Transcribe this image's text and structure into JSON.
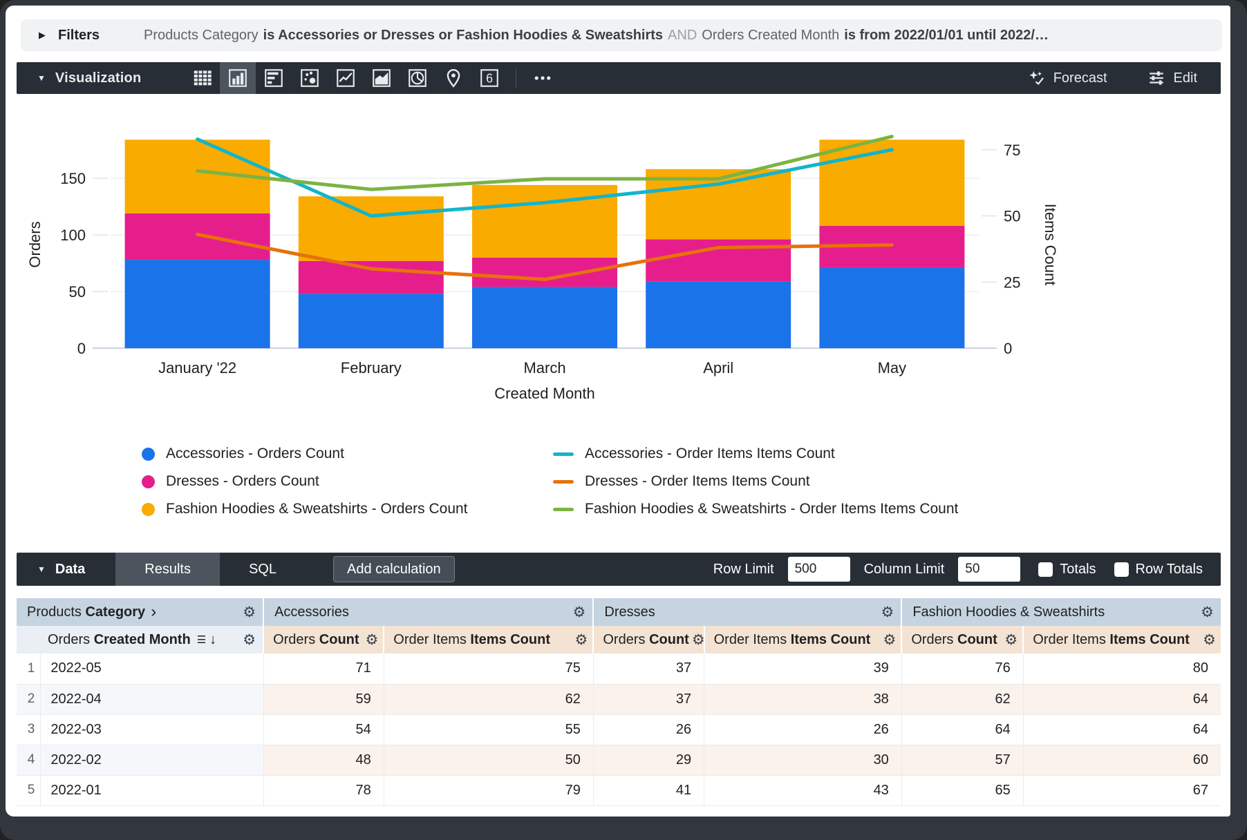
{
  "filters_bar": {
    "label": "Filters",
    "segments": [
      {
        "text": "Products Category",
        "style": "normal"
      },
      {
        "text": "is Accessories or Dresses or Fashion Hoodies & Sweatshirts",
        "style": "bold"
      },
      {
        "text": "AND",
        "style": "muted"
      },
      {
        "text": "Orders Created Month",
        "style": "normal"
      },
      {
        "text": "is from 2022/01/01 until 2022/…",
        "style": "bold"
      }
    ]
  },
  "viz_toolbar": {
    "title": "Visualization",
    "icons": [
      {
        "name": "table-icon",
        "selected": false
      },
      {
        "name": "column-chart-icon",
        "selected": true
      },
      {
        "name": "bar-chart-icon",
        "selected": false
      },
      {
        "name": "scatter-chart-icon",
        "selected": false
      },
      {
        "name": "line-chart-icon",
        "selected": false
      },
      {
        "name": "area-chart-icon",
        "selected": false
      },
      {
        "name": "pie-chart-icon",
        "selected": false
      },
      {
        "name": "map-pin-icon",
        "selected": false
      },
      {
        "name": "single-value-icon",
        "selected": false,
        "glyph": "6"
      },
      {
        "name": "more-icon",
        "selected": false,
        "after_divider": true
      }
    ],
    "forecast_label": "Forecast",
    "edit_label": "Edit"
  },
  "chart_data": {
    "type": "combo: stacked column + line, dual y-axes",
    "categories": [
      "January '22",
      "February",
      "March",
      "April",
      "May"
    ],
    "xlabel": "Created Month",
    "left_axis": {
      "label": "Orders",
      "ticks": [
        0,
        50,
        100,
        150
      ]
    },
    "right_axis": {
      "label": "Items Count",
      "ticks": [
        0,
        25,
        50,
        75
      ]
    },
    "bar_series": [
      {
        "name": "Accessories - Orders Count",
        "color": "#1a73e8",
        "values": [
          78,
          48,
          54,
          59,
          71
        ]
      },
      {
        "name": "Dresses - Orders Count",
        "color": "#e61e8c",
        "values": [
          41,
          29,
          26,
          37,
          37
        ]
      },
      {
        "name": "Fashion Hoodies & Sweatshirts - Orders Count",
        "color": "#f9ab00",
        "values": [
          65,
          57,
          64,
          62,
          76
        ]
      }
    ],
    "line_series": [
      {
        "name": "Accessories - Order Items Items Count",
        "color": "#12b5cb",
        "values": [
          79,
          50,
          55,
          62,
          75
        ]
      },
      {
        "name": "Dresses - Order Items Items Count",
        "color": "#e8710a",
        "values": [
          43,
          30,
          26,
          38,
          39
        ]
      },
      {
        "name": "Fashion Hoodies & Sweatshirts - Order Items Items Count",
        "color": "#7cb342",
        "values": [
          67,
          60,
          64,
          64,
          80
        ]
      }
    ]
  },
  "data_toolbar": {
    "label": "Data",
    "tabs": [
      {
        "label": "Results",
        "active": true
      },
      {
        "label": "SQL",
        "active": false
      }
    ],
    "add_calculation_label": "Add calculation",
    "row_limit_label": "Row Limit",
    "row_limit_value": "500",
    "column_limit_label": "Column Limit",
    "column_limit_value": "50",
    "totals_label": "Totals",
    "totals_checked": false,
    "row_totals_label": "Row Totals",
    "row_totals_checked": false
  },
  "table": {
    "group_headers": [
      {
        "prefix": "Products",
        "bold": "Category",
        "chevron": "›"
      },
      {
        "label": "Accessories"
      },
      {
        "label": "Dresses"
      },
      {
        "label": "Fashion Hoodies & Sweatshirts"
      }
    ],
    "dimension_header": {
      "prefix": "Orders",
      "bold": "Created Month",
      "sort_icon": "☰",
      "arrow_icon": "↓"
    },
    "measure_headers": {
      "orders": {
        "prefix": "Orders",
        "bold": "Count"
      },
      "items": {
        "prefix": "Order Items",
        "bold": "Items Count"
      }
    },
    "rows": [
      {
        "num": "1",
        "month": "2022-05",
        "values": [
          "71",
          "75",
          "37",
          "39",
          "76",
          "80"
        ]
      },
      {
        "num": "2",
        "month": "2022-04",
        "values": [
          "59",
          "62",
          "37",
          "38",
          "62",
          "64"
        ]
      },
      {
        "num": "3",
        "month": "2022-03",
        "values": [
          "54",
          "55",
          "26",
          "26",
          "64",
          "64"
        ]
      },
      {
        "num": "4",
        "month": "2022-02",
        "values": [
          "48",
          "50",
          "29",
          "30",
          "57",
          "60"
        ]
      },
      {
        "num": "5",
        "month": "2022-01",
        "values": [
          "78",
          "79",
          "41",
          "43",
          "65",
          "67"
        ]
      }
    ]
  }
}
